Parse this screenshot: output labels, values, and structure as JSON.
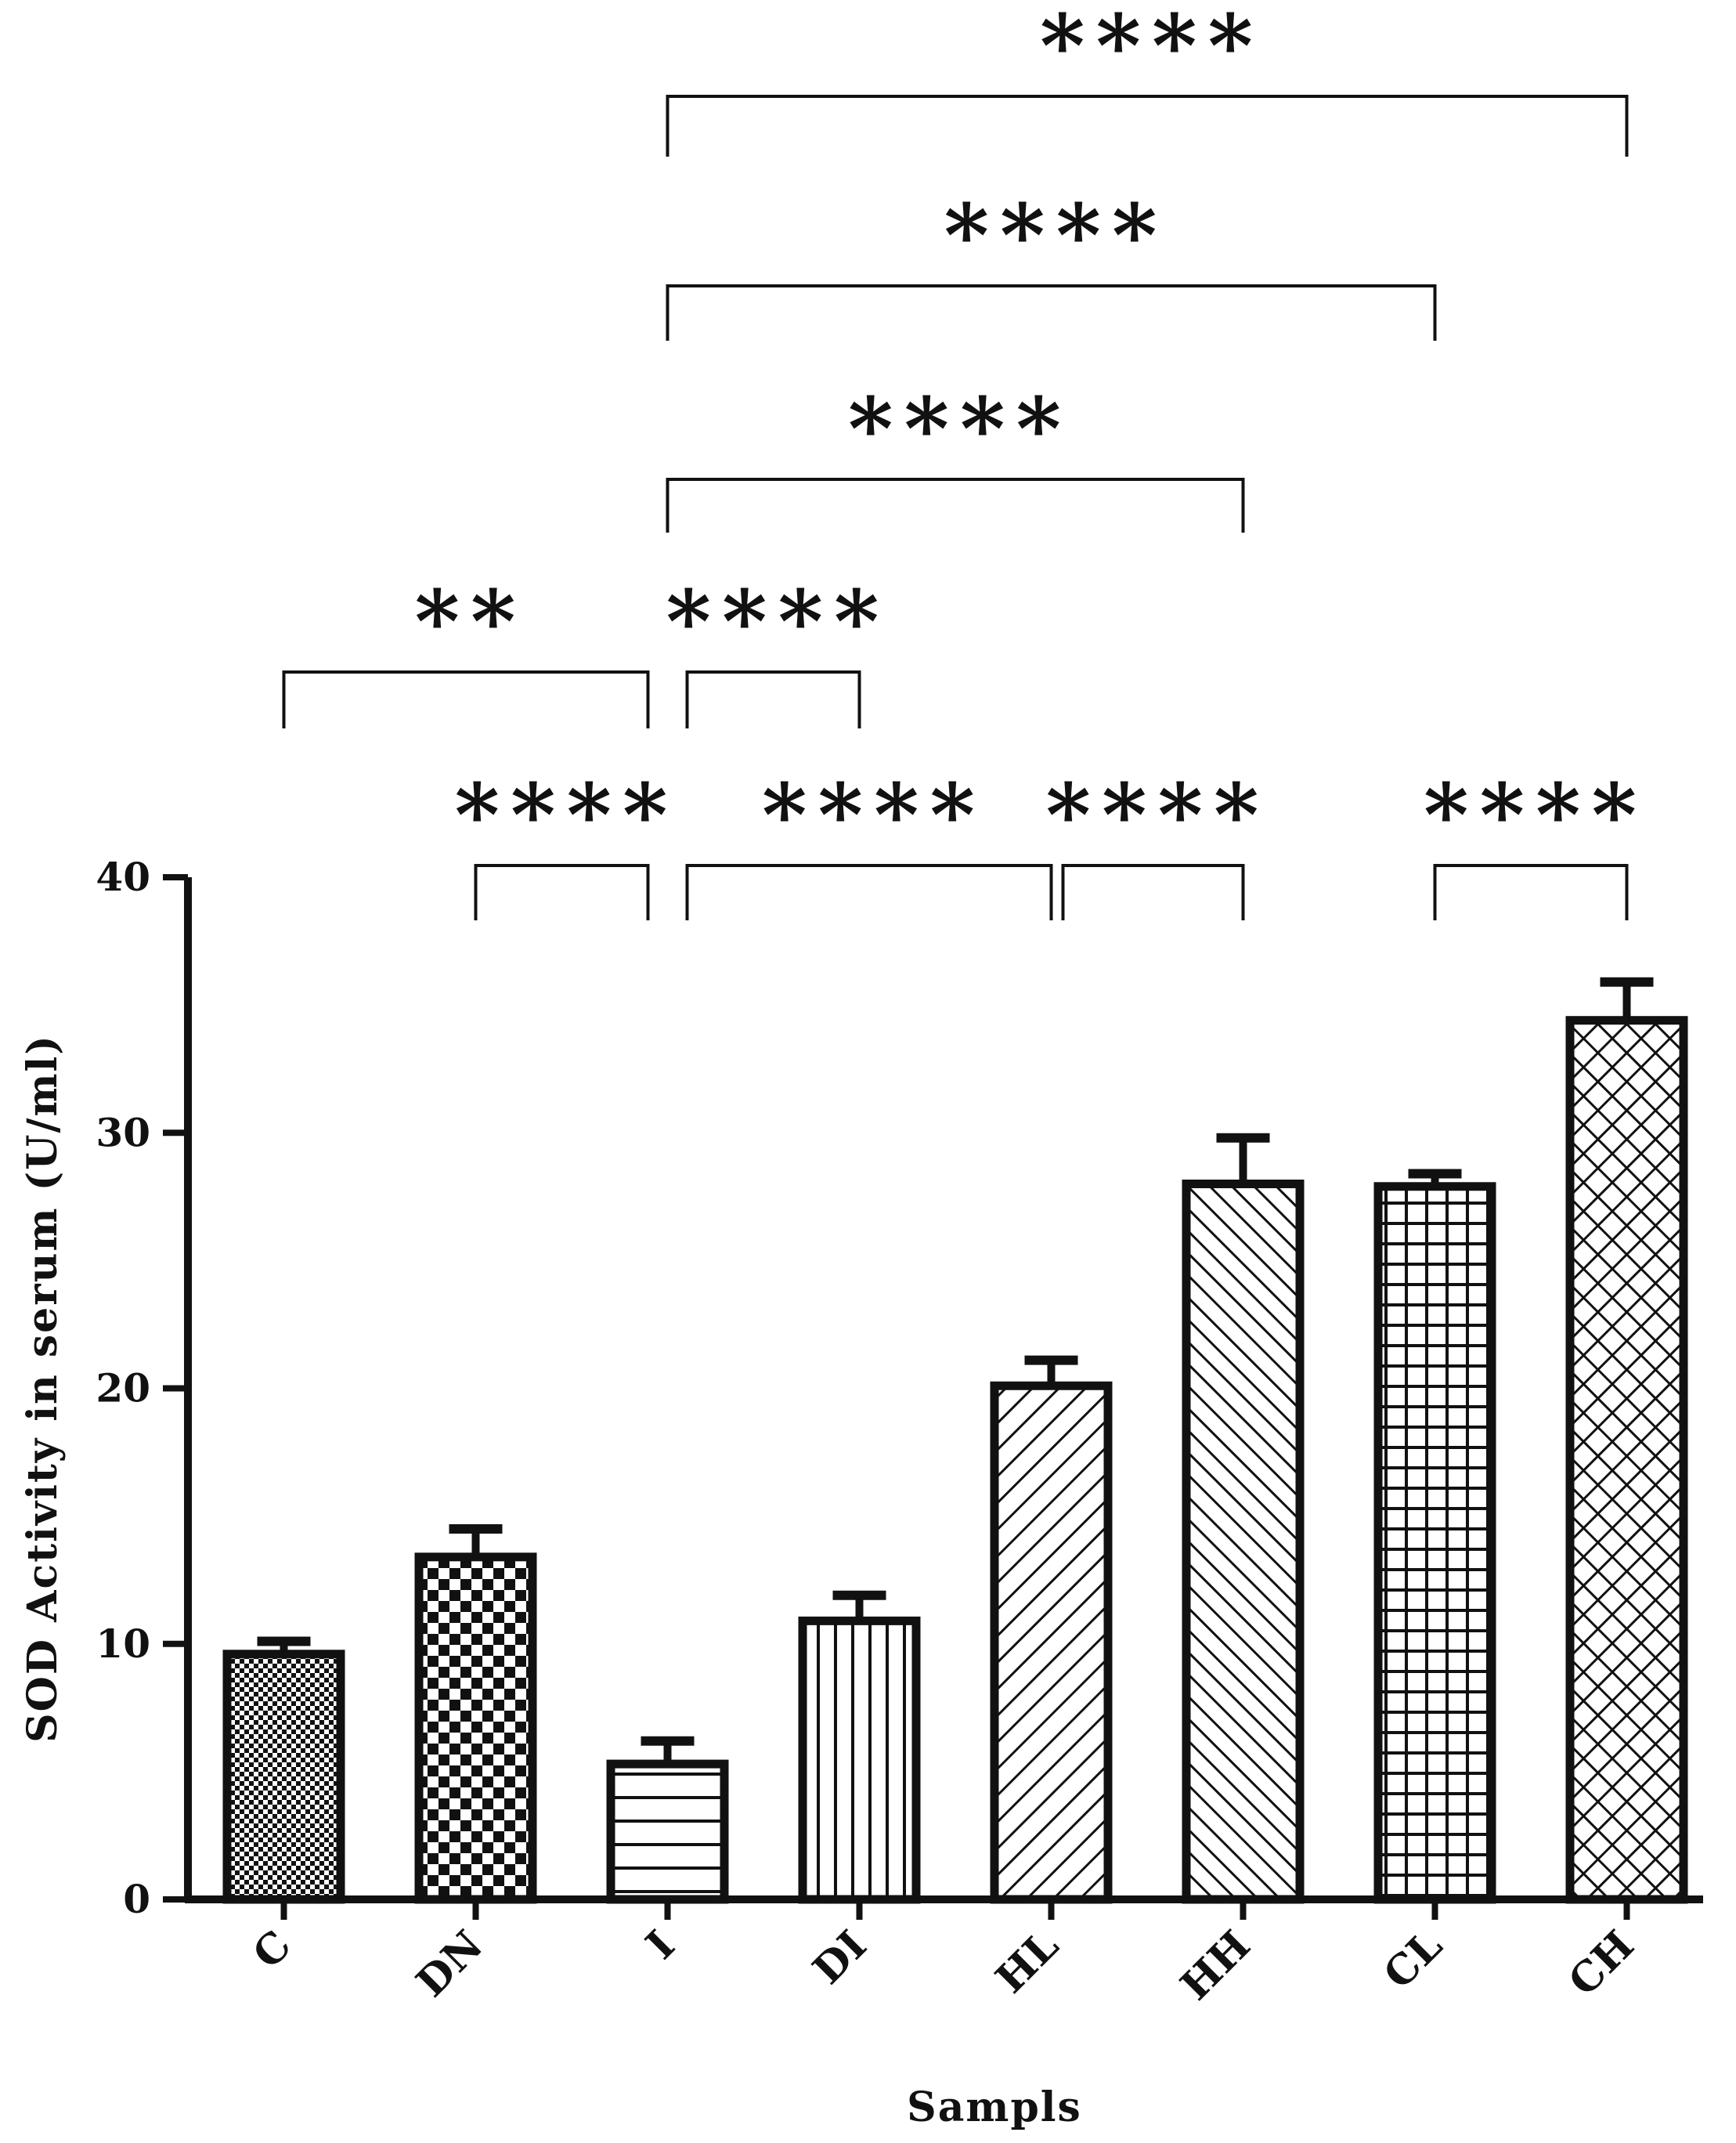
{
  "chart_data": {
    "type": "bar",
    "title": "",
    "xlabel": "Sampls",
    "ylabel": "SOD Activity in serum (U/ml)",
    "ylim": [
      0,
      40
    ],
    "yticks": [
      0,
      10,
      20,
      30,
      40
    ],
    "ytick_labels": [
      "0",
      "10",
      "20",
      "30",
      "40"
    ],
    "categories": [
      "C",
      "DN",
      "I",
      "DI",
      "HL",
      "HH",
      "CL",
      "CH"
    ],
    "values": [
      9.6,
      13.4,
      5.3,
      10.9,
      20.1,
      28.0,
      27.9,
      34.4
    ],
    "errors": [
      0.5,
      1.1,
      0.9,
      1.0,
      1.0,
      1.8,
      0.5,
      1.5
    ],
    "patterns": [
      "fine-checker",
      "checker",
      "horizontal-lines",
      "vertical-lines",
      "diagonal-wide",
      "diagonal-back",
      "grid",
      "crosshatch"
    ],
    "grid": false,
    "legend": "none",
    "significance": [
      {
        "from": "DN",
        "to": "I",
        "label": "****"
      },
      {
        "from": "I",
        "to": "HL",
        "label": "****"
      },
      {
        "from": "HL",
        "to": "HH",
        "label": "****"
      },
      {
        "from": "CL",
        "to": "CH",
        "label": "****"
      },
      {
        "from": "C",
        "to": "I",
        "label": "**"
      },
      {
        "from": "I",
        "to": "DI",
        "label": "****"
      },
      {
        "from": "I",
        "to": "HH",
        "label": "****"
      },
      {
        "from": "I",
        "to": "CL",
        "label": "****"
      },
      {
        "from": "I",
        "to": "CH",
        "label": "****"
      }
    ],
    "colors": {
      "stroke": "#111111",
      "background": "#ffffff"
    }
  }
}
